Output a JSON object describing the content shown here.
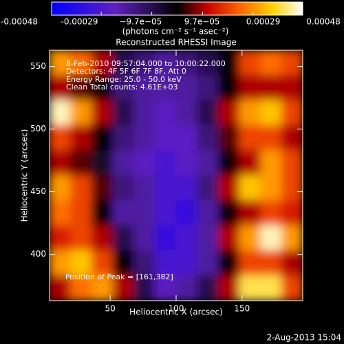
{
  "chart_data": {
    "type": "heatmap",
    "title": "Reconstructed RHESSI Image",
    "x_label": "Heliocentric X (arcsec)",
    "y_label": "Heliocentric Y (arcsec)",
    "annotations": [
      "8-Feb-2010 09:57:04.000 to 10:00:22.000",
      "Detectors: 4F 5F 6F 7F 8F, Att 0",
      "Energy Range: 25.0 - 50.0 keV",
      "Clean    Total counts: 4.61E+03",
      "Position of Peak = [161,382]"
    ],
    "timestamp": "2-Aug-2013 15:04",
    "colorbar": {
      "label": "(photons cm⁻² s⁻¹ asec⁻²)",
      "lim": [
        -0.00048,
        0.00048
      ],
      "ticks": [
        -0.00048,
        -0.00029,
        {
          "value": -9.7e-05,
          "label": "−9.7e−05"
        },
        {
          "value": 9.7e-05,
          "label": "9.7e−05"
        },
        0.00029,
        0.00048
      ]
    },
    "xlim": [
      4,
      196
    ],
    "ylim": [
      363,
      563
    ],
    "xticks": [
      50,
      100,
      150
    ],
    "yticks": [
      400,
      450,
      500,
      550
    ],
    "x": [
      12,
      28,
      44,
      60,
      76,
      92,
      108,
      124,
      140,
      156,
      172,
      188
    ],
    "y": [
      553,
      533,
      513,
      493,
      473,
      453,
      433,
      413,
      393,
      373
    ],
    "z": [
      [
        0.0003,
        0.00025,
        0.0001,
        -0.0001,
        -0.00015,
        -0.0002,
        -0.00015,
        -0.0001,
        0,
        0.0002,
        0.00025,
        0.0002
      ],
      [
        0.0001,
        5e-05,
        0,
        -0.00015,
        -0.0002,
        -0.0002,
        -0.0002,
        -0.00015,
        0,
        0.0001,
        0.0001,
        0.0001
      ],
      [
        0.00045,
        0.0003,
        0.0001,
        -0.0001,
        -0.0002,
        -0.00025,
        -0.0002,
        -0.0001,
        0.0001,
        0.0003,
        0.00035,
        0.0002
      ],
      [
        0.0002,
        0.0001,
        0,
        -0.00015,
        -0.0002,
        -0.00025,
        -0.00025,
        -0.00015,
        5e-05,
        0.0002,
        0.0002,
        0.0001
      ],
      [
        0.0001,
        5e-05,
        -5e-05,
        -0.0002,
        -0.00025,
        -0.0003,
        -0.00025,
        -0.0002,
        0,
        0.0001,
        0.0003,
        0.0002
      ],
      [
        0.0003,
        0.0002,
        5e-05,
        -0.00015,
        -0.0002,
        -0.0003,
        -0.0003,
        -0.00015,
        0.0001,
        0.00035,
        0.0003,
        0.0002
      ],
      [
        0.00025,
        0.0002,
        0,
        -0.0002,
        -0.0002,
        -0.0003,
        -0.00035,
        -0.0002,
        0,
        0.0001,
        0.0002,
        0.00015
      ],
      [
        0.00015,
        0.0002,
        0.0001,
        -0.0001,
        -0.0002,
        -0.00035,
        -0.0003,
        -0.0002,
        0.0001,
        0.0003,
        0.00045,
        0.0003
      ],
      [
        0.0003,
        0.00035,
        0.0002,
        0,
        -0.00015,
        -0.0003,
        -0.0003,
        -0.0002,
        0,
        0.0002,
        0.0002,
        0.0001
      ],
      [
        0.0001,
        0.00025,
        0.0003,
        0.0001,
        -0.0001,
        -0.00025,
        -0.0002,
        -0.0001,
        0.0001,
        0.0004,
        0.0004,
        0.0002
      ]
    ]
  }
}
